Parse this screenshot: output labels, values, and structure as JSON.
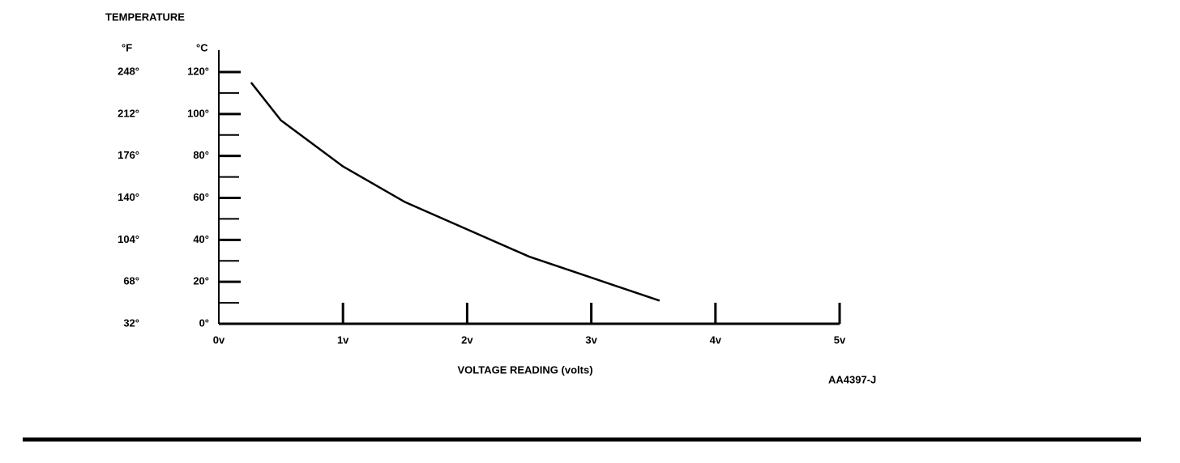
{
  "chart_data": {
    "type": "line",
    "title": "TEMPERATURE",
    "y_unit_label": "°C",
    "y2_unit_label": "°F",
    "xlabel": "VOLTAGE READING (volts)",
    "figure_id": "AA4397-J",
    "x": [
      0.26,
      0.5,
      1,
      1.5,
      2,
      2.5,
      3,
      3.55
    ],
    "values": [
      115,
      97,
      75,
      58,
      45,
      32,
      22,
      11
    ],
    "color": "#000000",
    "xlim": [
      0,
      5
    ],
    "xticks": [
      {
        "value": 0,
        "label": "0v"
      },
      {
        "value": 1,
        "label": "1v"
      },
      {
        "value": 2,
        "label": "2v"
      },
      {
        "value": 3,
        "label": "3v"
      },
      {
        "value": 4,
        "label": "4v"
      },
      {
        "value": 5,
        "label": "5v"
      }
    ],
    "ylim": [
      0,
      120
    ],
    "yticks": [
      {
        "value": 0,
        "label": "0°"
      },
      {
        "value": 20,
        "label": "20°"
      },
      {
        "value": 40,
        "label": "40°"
      },
      {
        "value": 60,
        "label": "60°"
      },
      {
        "value": 80,
        "label": "80°"
      },
      {
        "value": 100,
        "label": "100°"
      },
      {
        "value": 120,
        "label": "120°"
      }
    ],
    "y2lim": [
      32,
      248
    ],
    "y2ticks": [
      {
        "value": 32,
        "label": "32°"
      },
      {
        "value": 68,
        "label": "68°"
      },
      {
        "value": 104,
        "label": "104°"
      },
      {
        "value": 140,
        "label": "140°"
      },
      {
        "value": 176,
        "label": "176°"
      },
      {
        "value": 212,
        "label": "212°"
      },
      {
        "value": 248,
        "label": "248°"
      }
    ]
  }
}
